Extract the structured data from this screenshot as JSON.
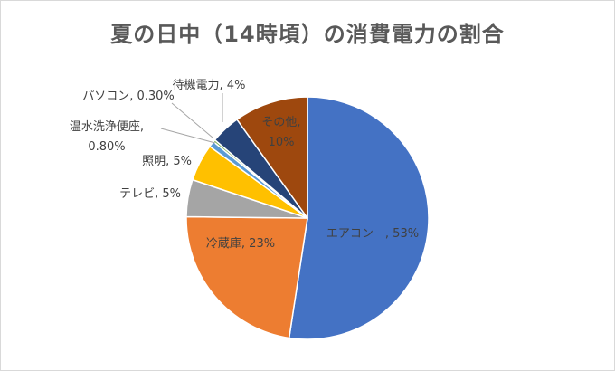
{
  "chart_data": {
    "type": "pie",
    "title": "夏の日中（14時頃）の消費電力の割合",
    "slices": [
      {
        "label": "エアコン",
        "display": "エアコン　, 53%",
        "value": 53,
        "color": "#4472c4"
      },
      {
        "label": "冷蔵庫",
        "display": "冷蔵庫, 23%",
        "value": 23,
        "color": "#ed7d31"
      },
      {
        "label": "テレビ",
        "display": "テレビ, 5%",
        "value": 5,
        "color": "#a5a5a5"
      },
      {
        "label": "照明",
        "display": "照明, 5%",
        "value": 5,
        "color": "#ffc000"
      },
      {
        "label": "温水洗浄便座",
        "display": "温水洗浄便座,|0.80%",
        "value": 0.8,
        "color": "#5b9bd5"
      },
      {
        "label": "パソコン",
        "display": "パソコン, 0.30%",
        "value": 0.3,
        "color": "#70ad47"
      },
      {
        "label": "待機電力",
        "display": "待機電力, 4%",
        "value": 4,
        "color": "#264478"
      },
      {
        "label": "その他",
        "display": "その他,|10%",
        "value": 10,
        "color": "#9e480e"
      }
    ]
  }
}
